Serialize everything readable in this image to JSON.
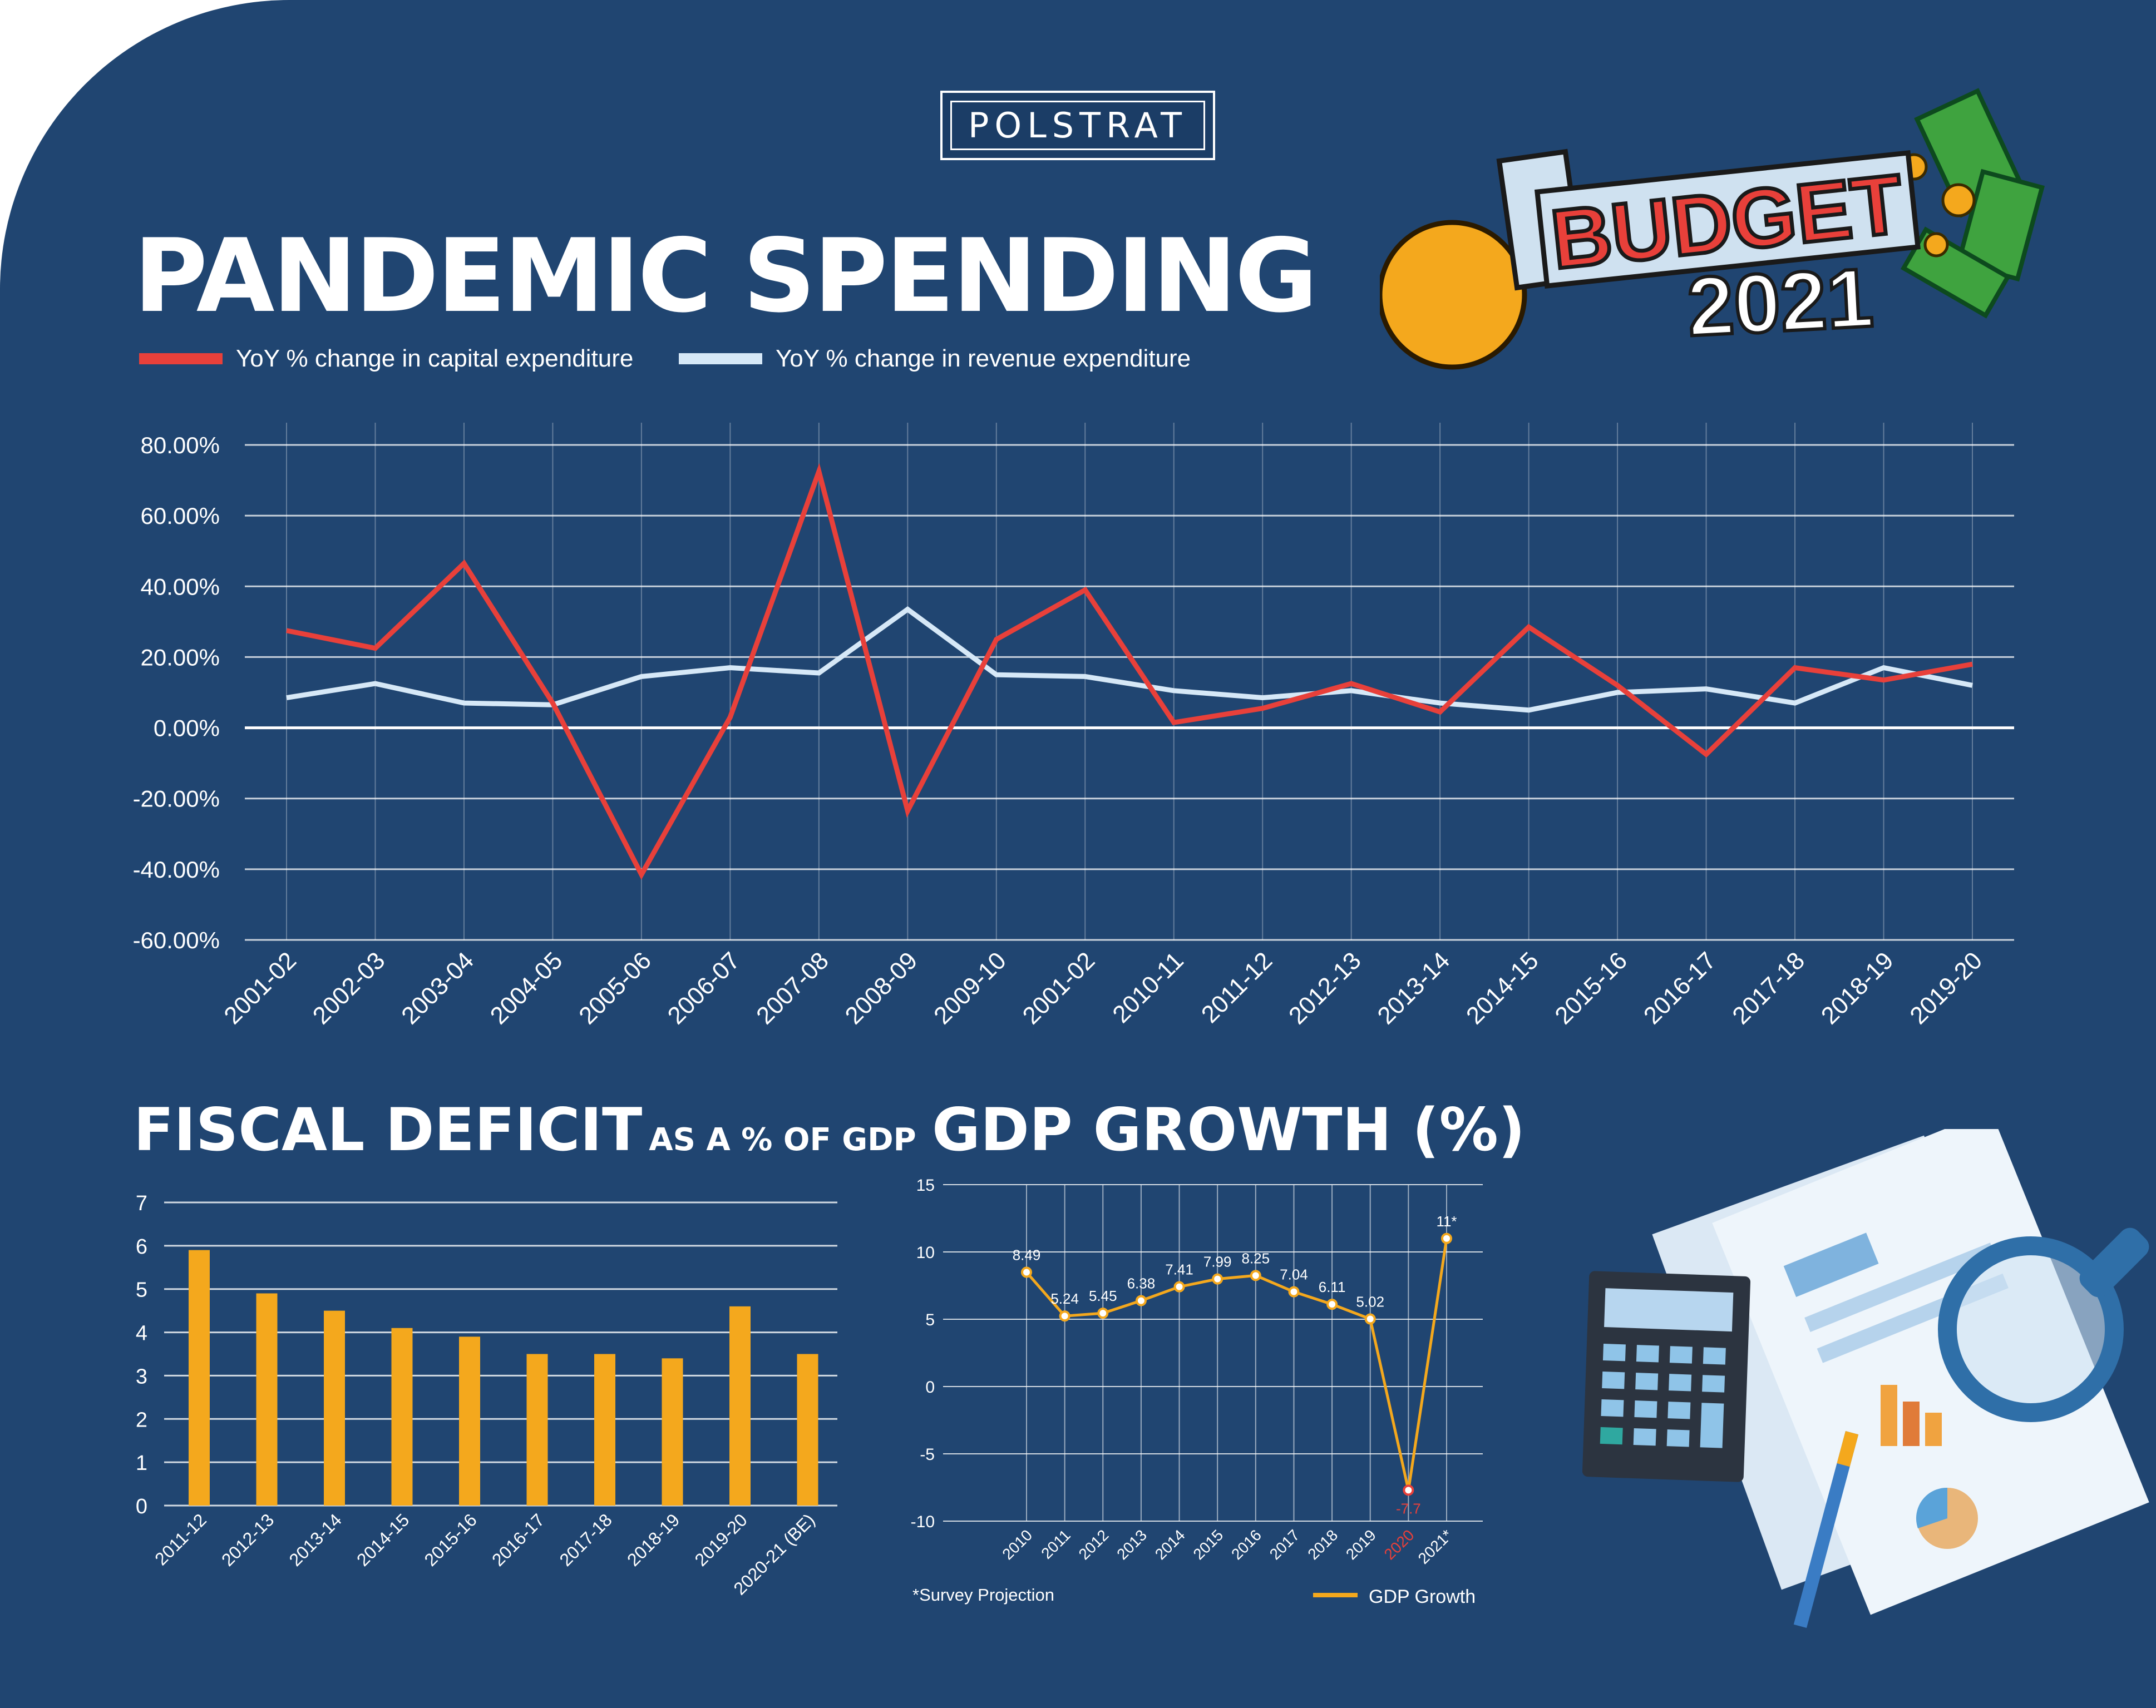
{
  "brand": "POLSTRAT",
  "title": "PANDEMIC SPENDING",
  "budget_badge": {
    "word": "BUDGET",
    "year": "2021"
  },
  "legend": {
    "capital": {
      "label": "YoY % change in capital expenditure",
      "color": "#e8403a"
    },
    "revenue": {
      "label": "YoY % change in revenue expenditure",
      "color": "#d6e8f7"
    }
  },
  "fiscal_title": {
    "main": "FISCAL DEFICIT",
    "sub": "AS A % OF GDP"
  },
  "gdp_title": "GDP GROWTH (%)",
  "gdp_note": "*Survey Projection",
  "gdp_legend": "GDP Growth",
  "colors": {
    "background": "#204571",
    "bar": "#f4a81d",
    "gdp_line": "#f4a81d",
    "grid": "#ffffff"
  },
  "icons": [
    "budget-2021-illustration",
    "calculator-icon",
    "documents-icon",
    "magnifier-icon",
    "pen-icon"
  ],
  "chart_data": [
    {
      "type": "line",
      "title": "PANDEMIC SPENDING",
      "categories": [
        "2001-02",
        "2002-03",
        "2003-04",
        "2004-05",
        "2005-06",
        "2006-07",
        "2007-08",
        "2008-09",
        "2009-10",
        "2001-02",
        "2010-11",
        "2011-12",
        "2012-13",
        "2013-14",
        "2014-15",
        "2015-16",
        "2016-17",
        "2017-18",
        "2018-19",
        "2019-20"
      ],
      "series": [
        {
          "name": "YoY % change in capital expenditure",
          "values": [
            27.5,
            22.5,
            46.5,
            7.0,
            -41.5,
            3.0,
            72.5,
            -23.5,
            25.0,
            39.0,
            1.5,
            5.5,
            12.5,
            4.5,
            28.5,
            12.0,
            -7.5,
            17.0,
            13.5,
            18.0
          ]
        },
        {
          "name": "YoY % change in revenue expenditure",
          "values": [
            8.5,
            12.5,
            7.0,
            6.5,
            14.5,
            17.0,
            15.5,
            33.5,
            15.0,
            14.5,
            10.5,
            8.5,
            10.5,
            7.0,
            5.0,
            10.0,
            11.0,
            7.0,
            17.0,
            12.0
          ]
        }
      ],
      "ylim": [
        -60,
        80
      ],
      "yticks": [
        80,
        60,
        40,
        20,
        0,
        -20,
        -40,
        -60
      ],
      "ytick_labels": [
        "80.00%",
        "60.00%",
        "40.00%",
        "20.00%",
        "0.00%",
        "-20.00%",
        "-40.00%",
        "-60.00%"
      ],
      "grid": true,
      "legend": "top-left"
    },
    {
      "type": "bar",
      "title": "FISCAL DEFICIT AS A % OF GDP",
      "categories": [
        "2011-12",
        "2012-13",
        "2013-14",
        "2014-15",
        "2015-16",
        "2016-17",
        "2017-18",
        "2018-19",
        "2019-20",
        "2020-21 (BE)"
      ],
      "values": [
        5.9,
        4.9,
        4.5,
        4.1,
        3.9,
        3.5,
        3.5,
        3.4,
        4.6,
        3.5
      ],
      "ylim": [
        0,
        7
      ],
      "yticks": [
        0,
        1,
        2,
        3,
        4,
        5,
        6,
        7
      ],
      "grid": true
    },
    {
      "type": "line",
      "title": "GDP GROWTH (%)",
      "categories": [
        "2010",
        "2011",
        "2012",
        "2013",
        "2014",
        "2015",
        "2016",
        "2017",
        "2018",
        "2019",
        "2020",
        "2021*"
      ],
      "series": [
        {
          "name": "GDP Growth",
          "values": [
            8.49,
            5.24,
            5.45,
            6.38,
            7.41,
            7.99,
            8.25,
            7.04,
            6.11,
            5.02,
            -7.7,
            11
          ]
        }
      ],
      "data_labels": [
        "8.49",
        "5.24",
        "5.45",
        "6.38",
        "7.41",
        "7.99",
        "8.25",
        "7.04",
        "6.11",
        "5.02",
        "-7.7",
        "11*"
      ],
      "ylim": [
        -10,
        15
      ],
      "yticks": [
        15,
        10,
        5,
        0,
        -5,
        -10
      ],
      "grid": true,
      "legend": "bottom-right",
      "highlight_category": "2020",
      "highlight_color": "#e8403a"
    }
  ]
}
